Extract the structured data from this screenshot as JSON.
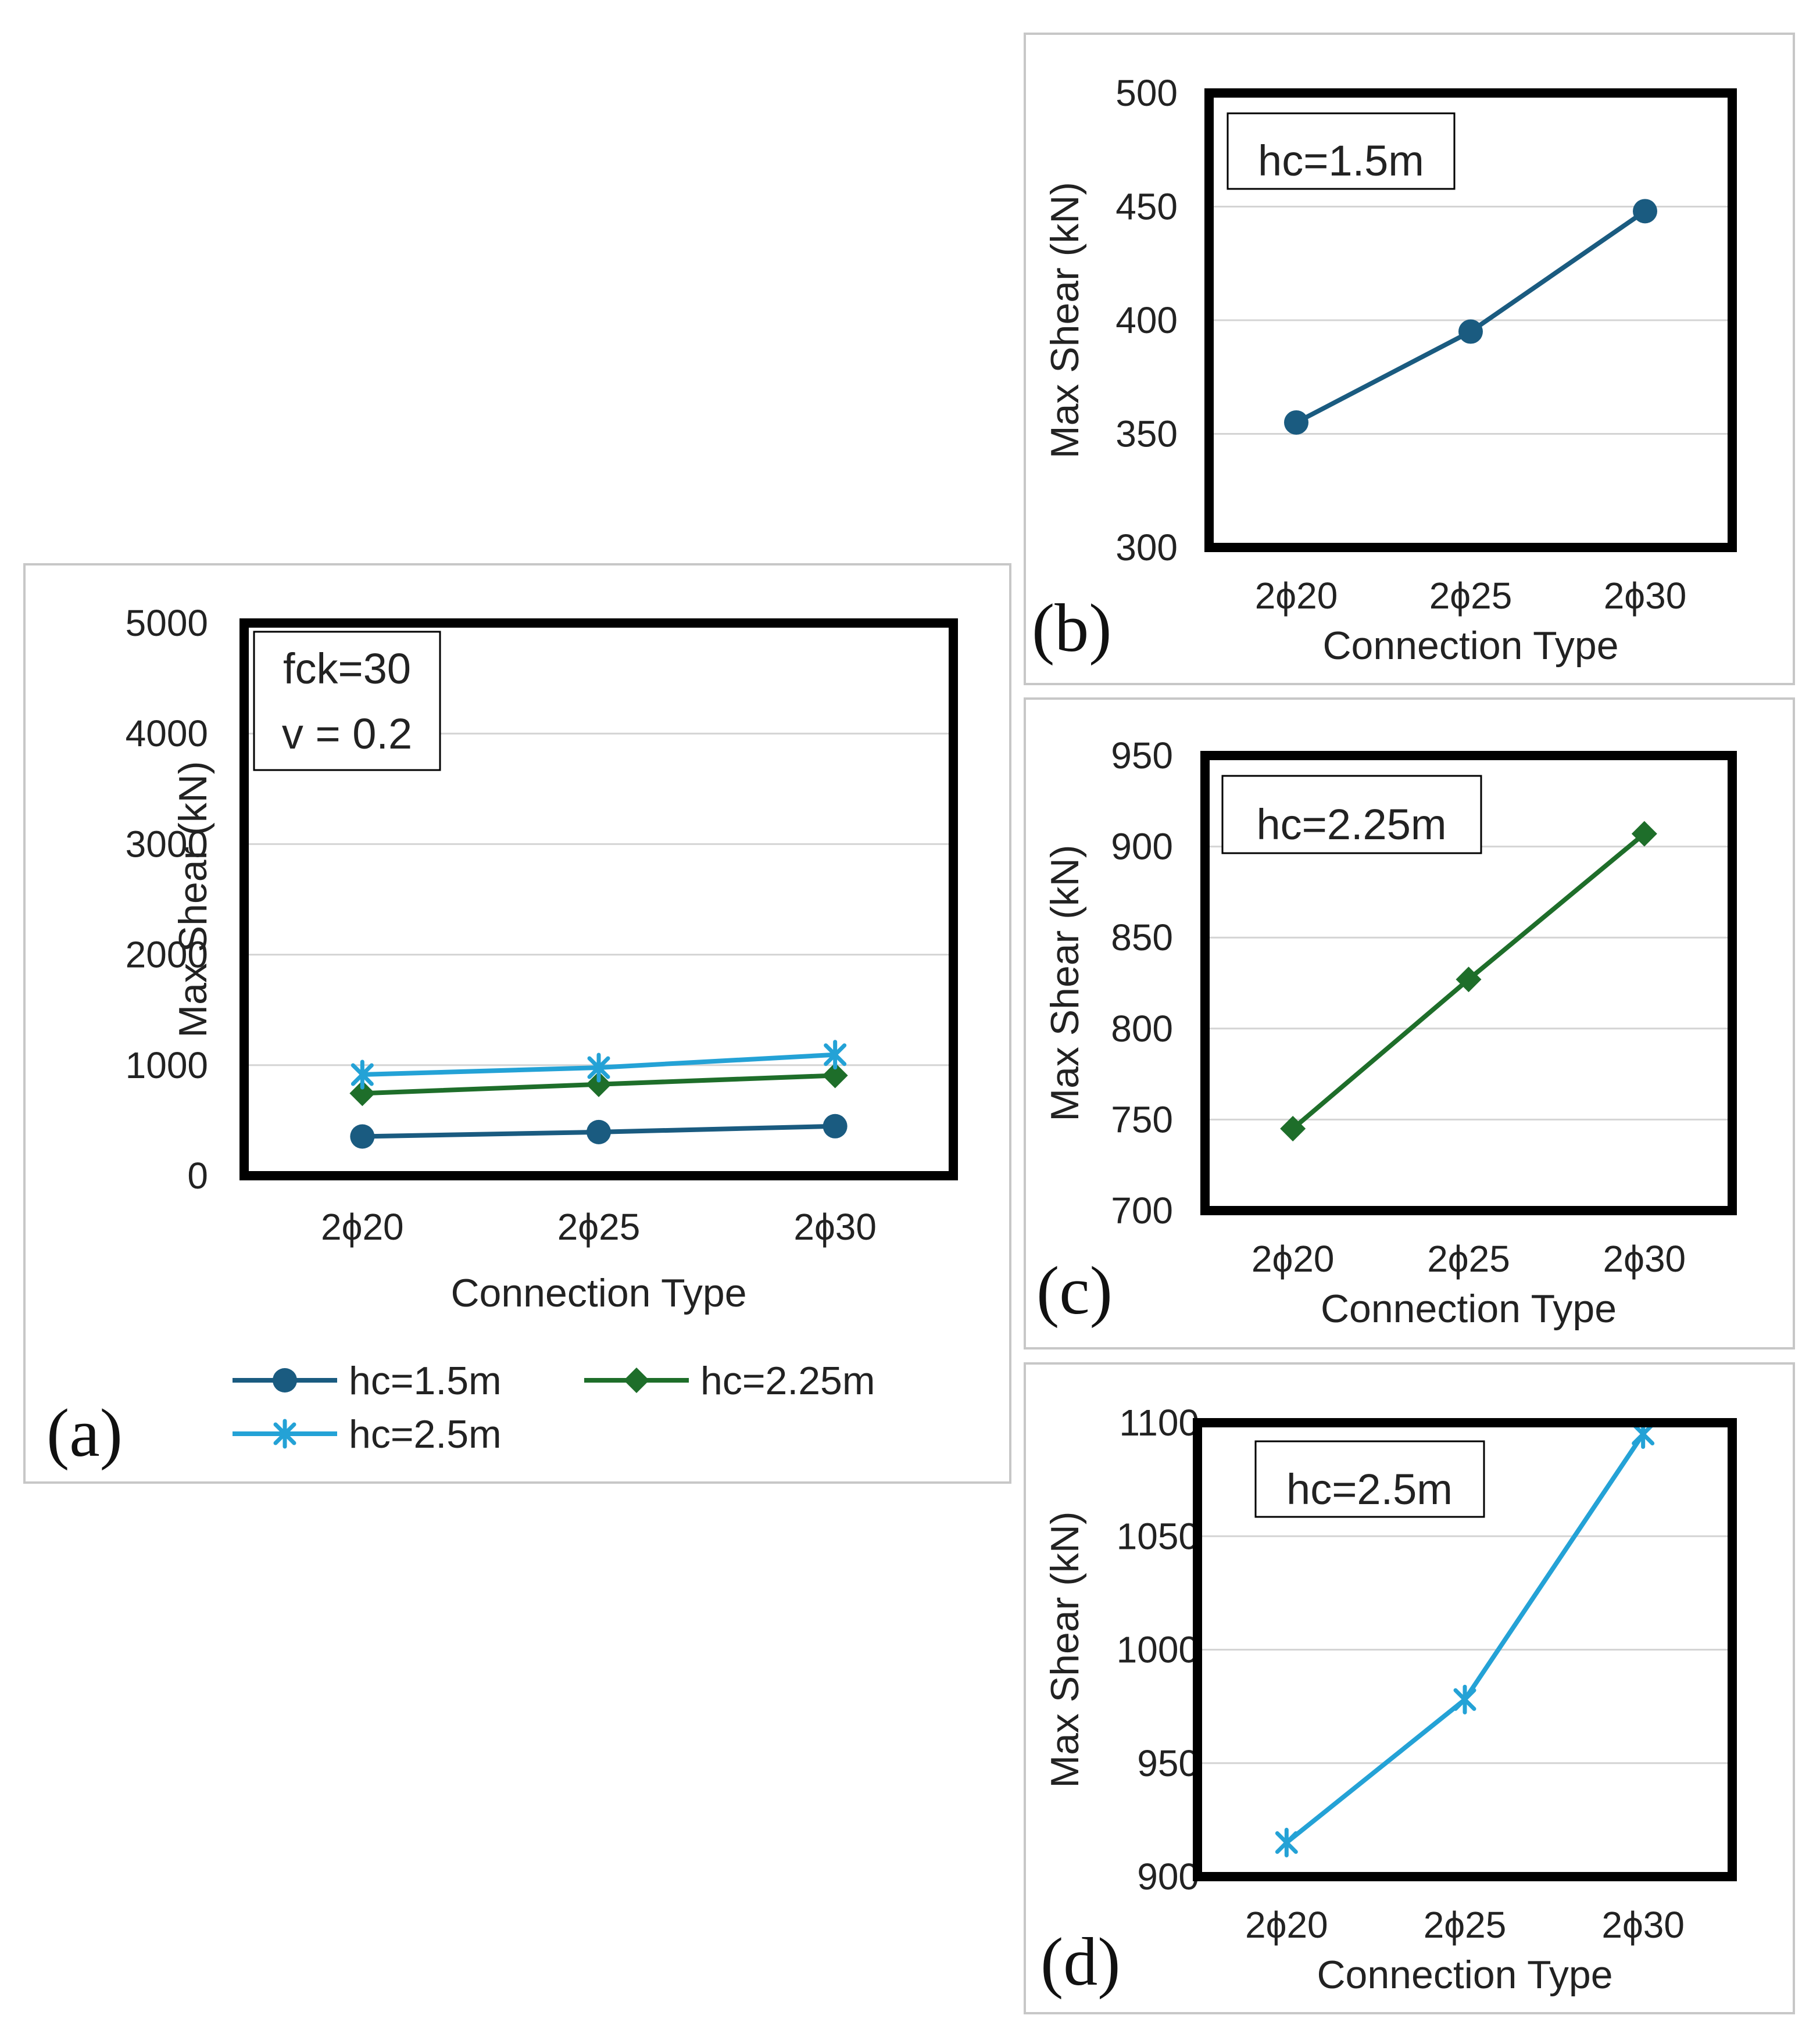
{
  "colors": {
    "hc15": "#1a5b80",
    "hc225": "#1e6e2a",
    "hc25": "#24a2d6"
  },
  "chart_data": [
    {
      "id": "a",
      "panel_label": "(a)",
      "type": "line",
      "xlabel": "Connection Type",
      "ylabel": "Max Shear (kN)",
      "categories": [
        "2ϕ20",
        "2ϕ25",
        "2ϕ30"
      ],
      "ylim": [
        0,
        5000
      ],
      "yticks": [
        "0",
        "1000",
        "2000",
        "3000",
        "4000",
        "5000"
      ],
      "annotation": [
        "fck=30",
        "v = 0.2"
      ],
      "legend": "bottom",
      "series": [
        {
          "name": "hc=1.5m",
          "values": [
            355,
            395,
            448
          ],
          "color": "#1a5b80",
          "marker": "circle"
        },
        {
          "name": "hc=2.25m",
          "values": [
            745,
            827,
            907
          ],
          "color": "#1e6e2a",
          "marker": "diamond"
        },
        {
          "name": "hc=2.5m",
          "values": [
            915,
            978,
            1095
          ],
          "color": "#24a2d6",
          "marker": "star"
        }
      ]
    },
    {
      "id": "b",
      "panel_label": "(b)",
      "type": "line",
      "xlabel": "Connection Type",
      "ylabel": "Max Shear (kN)",
      "categories": [
        "2ϕ20",
        "2ϕ25",
        "2ϕ30"
      ],
      "ylim": [
        300,
        500
      ],
      "yticks": [
        "300",
        "350",
        "400",
        "450",
        "500"
      ],
      "annotation": [
        "hc=1.5m"
      ],
      "series": [
        {
          "name": "hc=1.5m",
          "values": [
            355,
            395,
            448
          ],
          "color": "#1a5b80",
          "marker": "circle"
        }
      ]
    },
    {
      "id": "c",
      "panel_label": "(c)",
      "type": "line",
      "xlabel": "Connection Type",
      "ylabel": "Max Shear (kN)",
      "categories": [
        "2ϕ20",
        "2ϕ25",
        "2ϕ30"
      ],
      "ylim": [
        700,
        950
      ],
      "yticks": [
        "700",
        "750",
        "800",
        "850",
        "900",
        "950"
      ],
      "annotation": [
        "hc=2.25m"
      ],
      "series": [
        {
          "name": "hc=2.25m",
          "values": [
            745,
            827,
            907
          ],
          "color": "#1e6e2a",
          "marker": "diamond"
        }
      ]
    },
    {
      "id": "d",
      "panel_label": "(d)",
      "type": "line",
      "xlabel": "Connection Type",
      "ylabel": "Max Shear (kN)",
      "categories": [
        "2ϕ20",
        "2ϕ25",
        "2ϕ30"
      ],
      "ylim": [
        900,
        1100
      ],
      "yticks": [
        "900",
        "950",
        "1000",
        "1050",
        "1100"
      ],
      "annotation": [
        "hc=2.5m"
      ],
      "series": [
        {
          "name": "hc=2.5m",
          "values": [
            915,
            978,
            1095
          ],
          "color": "#24a2d6",
          "marker": "star"
        }
      ]
    }
  ]
}
